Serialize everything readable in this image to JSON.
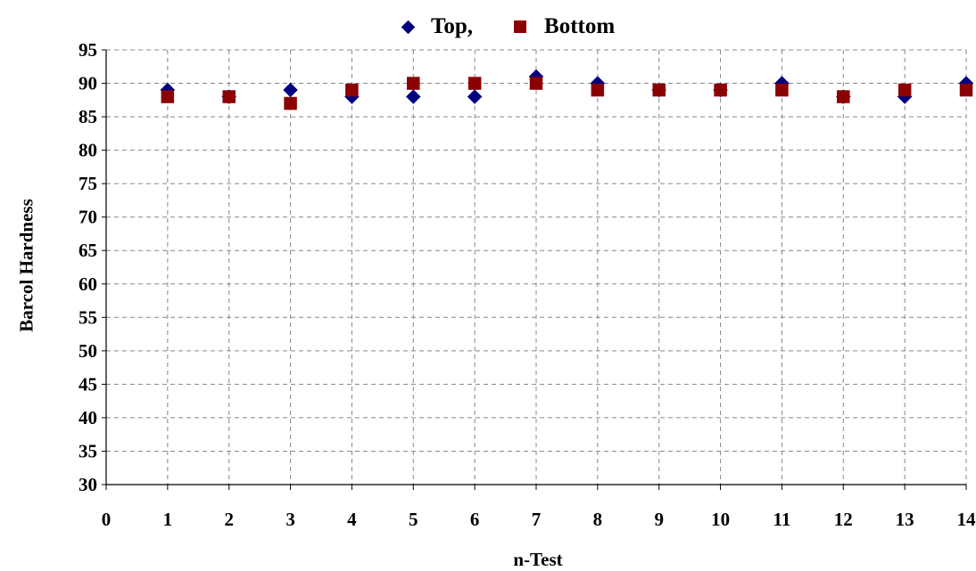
{
  "chart_data": {
    "type": "scatter",
    "title": "",
    "xlabel": "n-Test",
    "ylabel": "Barcol Hardness",
    "xlim": [
      0,
      14
    ],
    "ylim": [
      30,
      95
    ],
    "xticks": [
      0,
      1,
      2,
      3,
      4,
      5,
      6,
      7,
      8,
      9,
      10,
      11,
      12,
      13,
      14
    ],
    "yticks": [
      30,
      35,
      40,
      45,
      50,
      55,
      60,
      65,
      70,
      75,
      80,
      85,
      90,
      95
    ],
    "grid": true,
    "legend_position": "top",
    "series": [
      {
        "name": "Top,",
        "marker": "diamond",
        "color": "#000080",
        "x": [
          1,
          2,
          3,
          4,
          5,
          6,
          7,
          8,
          9,
          10,
          11,
          12,
          13,
          14
        ],
        "y": [
          89,
          88,
          89,
          88,
          88,
          88,
          91,
          90,
          89,
          89,
          90,
          88,
          88,
          90
        ]
      },
      {
        "name": "Bottom",
        "marker": "square",
        "color": "#8B0000",
        "x": [
          1,
          2,
          3,
          4,
          5,
          6,
          7,
          8,
          9,
          10,
          11,
          12,
          13,
          14
        ],
        "y": [
          88,
          88,
          87,
          89,
          90,
          90,
          90,
          89,
          89,
          89,
          89,
          88,
          89,
          89
        ]
      }
    ]
  }
}
